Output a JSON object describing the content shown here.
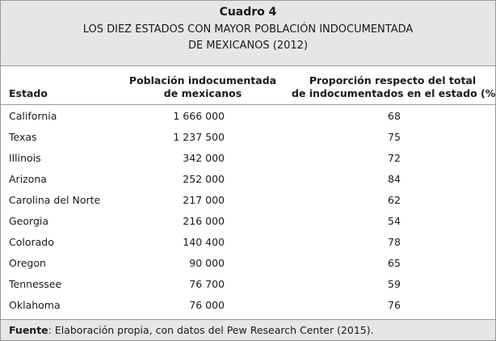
{
  "header": {
    "title": "Cuadro 4",
    "subtitle": [
      "LOS DIEZ ESTADOS CON MAYOR POBLACIÓN INDOCUMENTADA",
      "DE MEXICANOS (2012)"
    ]
  },
  "table": {
    "columns": [
      [
        "Estado"
      ],
      [
        "Población indocumentada",
        "de mexicanos"
      ],
      [
        "Proporción respecto del total",
        "de indocumentados en el estado (%)"
      ]
    ],
    "rows": [
      [
        "California",
        "1 666 000",
        68
      ],
      [
        "Texas",
        "1 237 500",
        75
      ],
      [
        "Illinois",
        "342 000",
        72
      ],
      [
        "Arizona",
        "252 000",
        84
      ],
      [
        "Carolina del Norte",
        "217 000",
        62
      ],
      [
        "Georgia",
        "216 000",
        54
      ],
      [
        "Colorado",
        "140 400",
        78
      ],
      [
        "Oregon",
        "90 000",
        65
      ],
      [
        "Tennessee",
        "76 700",
        59
      ],
      [
        "Oklahoma",
        "76 000",
        76
      ]
    ]
  },
  "footer": {
    "label": "Fuente",
    "text": ": Elaboración propia, con datos del Pew Research Center (2015)."
  }
}
